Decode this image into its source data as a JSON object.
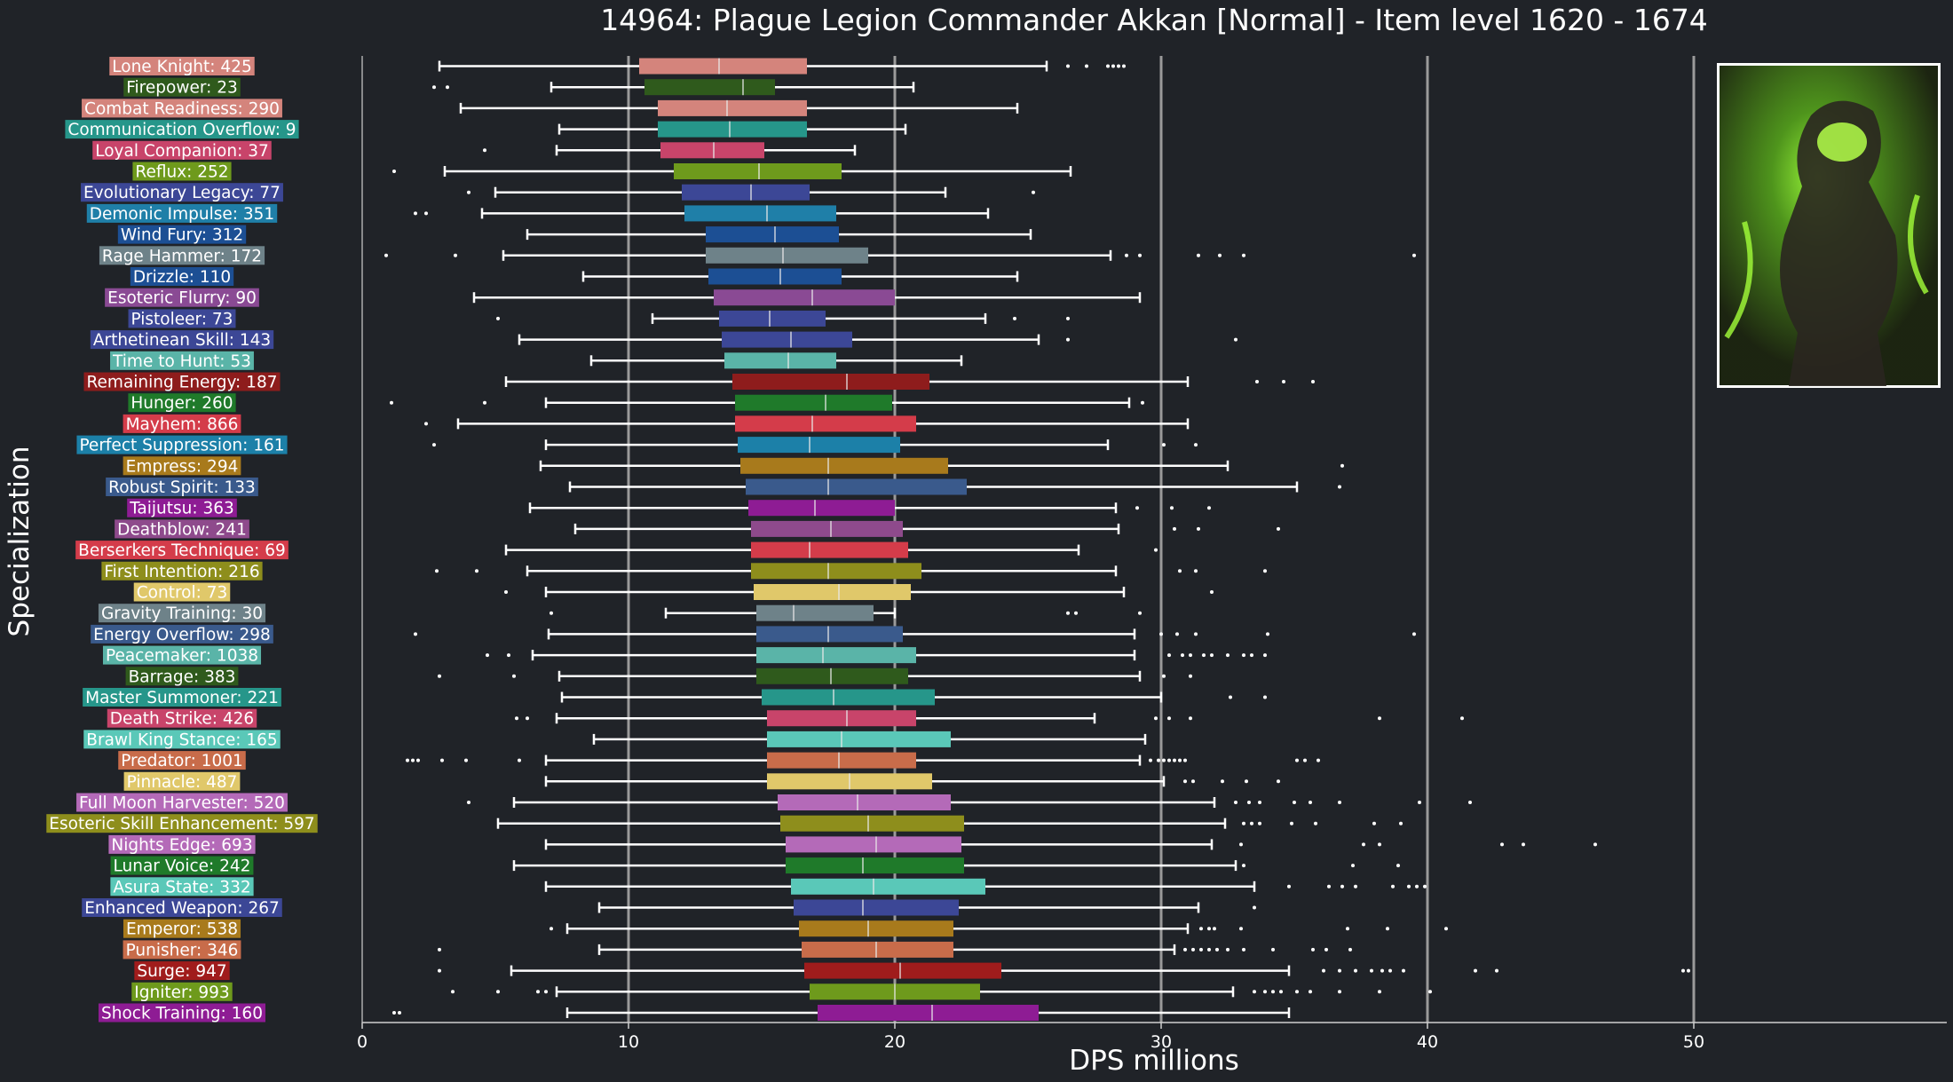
{
  "chart_data": {
    "type": "boxplot",
    "title": "14964: Plague Legion Commander Akkan [Normal] - Item level 1620 - 1674",
    "xlabel": "DPS millions",
    "ylabel": "Specialization",
    "xlim": [
      0,
      59.5
    ],
    "xticks": [
      0,
      10,
      20,
      30,
      40,
      50
    ],
    "gridlines_x": [
      10,
      20,
      30,
      40,
      50
    ],
    "legend": "none",
    "colors": {
      "background": "#202328",
      "grid": "#9a9a9a",
      "text": "#ffffff"
    },
    "series": [
      {
        "label": "Lone Knight: 425",
        "color": "#d4847c",
        "whisker_low": 2.9,
        "q1": 10.4,
        "median": 13.4,
        "q3": 16.7,
        "whisker_high": 25.7,
        "outliers": [
          26.5,
          27.2,
          28.0,
          28.2,
          28.4,
          28.6
        ]
      },
      {
        "label": "Firepower: 23",
        "color": "#2f5a1c",
        "whisker_low": 7.1,
        "q1": 10.6,
        "median": 14.3,
        "q3": 15.5,
        "whisker_high": 20.7,
        "outliers": [
          2.7,
          3.2
        ]
      },
      {
        "label": "Combat Readiness: 290",
        "color": "#d4847c",
        "whisker_low": 3.7,
        "q1": 11.1,
        "median": 13.7,
        "q3": 16.7,
        "whisker_high": 24.6,
        "outliers": []
      },
      {
        "label": "Communication Overflow: 9",
        "color": "#26968a",
        "whisker_low": 7.4,
        "q1": 11.1,
        "median": 13.8,
        "q3": 16.7,
        "whisker_high": 20.4,
        "outliers": []
      },
      {
        "label": "Loyal Companion: 37",
        "color": "#c8446a",
        "whisker_low": 7.3,
        "q1": 11.2,
        "median": 13.2,
        "q3": 15.1,
        "whisker_high": 18.5,
        "outliers": [
          4.6
        ]
      },
      {
        "label": "Reflux: 252",
        "color": "#6e9a1c",
        "whisker_low": 3.1,
        "q1": 11.7,
        "median": 14.9,
        "q3": 18.0,
        "whisker_high": 26.6,
        "outliers": [
          1.2
        ]
      },
      {
        "label": "Evolutionary Legacy: 77",
        "color": "#3c4796",
        "whisker_low": 5.0,
        "q1": 12.0,
        "median": 14.6,
        "q3": 16.8,
        "whisker_high": 21.9,
        "outliers": [
          4.0,
          25.2
        ]
      },
      {
        "label": "Demonic Impulse: 351",
        "color": "#1f7fa8",
        "whisker_low": 4.5,
        "q1": 12.1,
        "median": 15.2,
        "q3": 17.8,
        "whisker_high": 23.5,
        "outliers": [
          2.0,
          2.4
        ]
      },
      {
        "label": "Wind Fury: 312",
        "color": "#1c4f94",
        "whisker_low": 6.2,
        "q1": 12.9,
        "median": 15.5,
        "q3": 17.9,
        "whisker_high": 25.1,
        "outliers": []
      },
      {
        "label": "Rage Hammer: 172",
        "color": "#6e8289",
        "whisker_low": 5.3,
        "q1": 12.9,
        "median": 15.8,
        "q3": 19.0,
        "whisker_high": 28.1,
        "outliers": [
          0.9,
          3.5,
          28.7,
          29.2,
          31.4,
          32.2,
          33.1,
          39.5
        ]
      },
      {
        "label": "Drizzle: 110",
        "color": "#1c4f94",
        "whisker_low": 8.3,
        "q1": 13.0,
        "median": 15.7,
        "q3": 18.0,
        "whisker_high": 24.6,
        "outliers": []
      },
      {
        "label": "Esoteric Flurry: 90",
        "color": "#8a4a94",
        "whisker_low": 4.2,
        "q1": 13.2,
        "median": 16.9,
        "q3": 20.0,
        "whisker_high": 29.2,
        "outliers": []
      },
      {
        "label": "Pistoleer: 73",
        "color": "#3c4796",
        "whisker_low": 10.9,
        "q1": 13.4,
        "median": 15.3,
        "q3": 17.4,
        "whisker_high": 23.4,
        "outliers": [
          5.1,
          24.5,
          26.5
        ]
      },
      {
        "label": "Arthetinean Skill: 143",
        "color": "#3c4796",
        "whisker_low": 5.9,
        "q1": 13.5,
        "median": 16.1,
        "q3": 18.4,
        "whisker_high": 25.4,
        "outliers": [
          26.5,
          32.8
        ]
      },
      {
        "label": "Time to Hunt: 53",
        "color": "#5ab4a8",
        "whisker_low": 8.6,
        "q1": 13.6,
        "median": 16.0,
        "q3": 17.8,
        "whisker_high": 22.5,
        "outliers": []
      },
      {
        "label": "Remaining Energy: 187",
        "color": "#8e1c1c",
        "whisker_low": 5.4,
        "q1": 13.9,
        "median": 18.2,
        "q3": 21.3,
        "whisker_high": 31.0,
        "outliers": [
          33.6,
          34.6,
          35.7
        ]
      },
      {
        "label": "Hunger: 260",
        "color": "#1f7a2a",
        "whisker_low": 6.9,
        "q1": 14.0,
        "median": 17.4,
        "q3": 19.9,
        "whisker_high": 28.8,
        "outliers": [
          1.1,
          4.6,
          29.3
        ]
      },
      {
        "label": "Mayhem: 866",
        "color": "#d43c4a",
        "whisker_low": 3.6,
        "q1": 14.0,
        "median": 16.9,
        "q3": 20.8,
        "whisker_high": 31.0,
        "outliers": [
          2.4
        ]
      },
      {
        "label": "Perfect Suppression: 161",
        "color": "#1c80a8",
        "whisker_low": 6.9,
        "q1": 14.1,
        "median": 16.8,
        "q3": 20.2,
        "whisker_high": 28.0,
        "outliers": [
          2.7,
          30.1,
          31.3
        ]
      },
      {
        "label": "Empress: 294",
        "color": "#a87a1c",
        "whisker_low": 6.7,
        "q1": 14.2,
        "median": 17.5,
        "q3": 22.0,
        "whisker_high": 32.5,
        "outliers": [
          36.8
        ]
      },
      {
        "label": "Robust Spirit: 133",
        "color": "#3a5a8c",
        "whisker_low": 7.8,
        "q1": 14.4,
        "median": 17.5,
        "q3": 22.7,
        "whisker_high": 35.1,
        "outliers": [
          36.7
        ]
      },
      {
        "label": "Taijutsu: 363",
        "color": "#8e1c94",
        "whisker_low": 6.3,
        "q1": 14.5,
        "median": 17.0,
        "q3": 20.0,
        "whisker_high": 28.3,
        "outliers": [
          29.1,
          30.4,
          31.8
        ]
      },
      {
        "label": "Deathblow: 241",
        "color": "#8e4a8c",
        "whisker_low": 8.0,
        "q1": 14.6,
        "median": 17.6,
        "q3": 20.3,
        "whisker_high": 28.4,
        "outliers": [
          30.5,
          31.4,
          34.4
        ]
      },
      {
        "label": "Berserkers Technique: 69",
        "color": "#d43c4a",
        "whisker_low": 5.4,
        "q1": 14.6,
        "median": 16.8,
        "q3": 20.5,
        "whisker_high": 26.9,
        "outliers": [
          29.8
        ]
      },
      {
        "label": "First Intention: 216",
        "color": "#8e8e1c",
        "whisker_low": 6.2,
        "q1": 14.6,
        "median": 17.5,
        "q3": 21.0,
        "whisker_high": 28.3,
        "outliers": [
          2.8,
          4.3,
          30.7,
          31.3,
          33.9
        ]
      },
      {
        "label": "Control: 73",
        "color": "#e0c86a",
        "whisker_low": 6.9,
        "q1": 14.7,
        "median": 17.9,
        "q3": 20.6,
        "whisker_high": 28.6,
        "outliers": [
          5.4,
          31.9
        ]
      },
      {
        "label": "Gravity Training: 30",
        "color": "#6e8289",
        "whisker_low": 11.4,
        "q1": 14.8,
        "median": 16.2,
        "q3": 19.2,
        "whisker_high": 20.0,
        "outliers": [
          7.1,
          26.5,
          26.8,
          29.2
        ]
      },
      {
        "label": "Energy Overflow: 298",
        "color": "#3a5a8c",
        "whisker_low": 7.0,
        "q1": 14.8,
        "median": 17.5,
        "q3": 20.3,
        "whisker_high": 29.0,
        "outliers": [
          2.0,
          30.0,
          30.6,
          31.3,
          34.0,
          39.5
        ]
      },
      {
        "label": "Peacemaker: 1038",
        "color": "#5ab4a8",
        "whisker_low": 6.4,
        "q1": 14.8,
        "median": 17.3,
        "q3": 20.8,
        "whisker_high": 29.0,
        "outliers": [
          4.7,
          5.5,
          30.3,
          30.8,
          31.1,
          31.6,
          31.9,
          32.5,
          33.1,
          33.4,
          33.9
        ]
      },
      {
        "label": "Barrage: 383",
        "color": "#2f5a1c",
        "whisker_low": 7.4,
        "q1": 14.8,
        "median": 17.6,
        "q3": 20.5,
        "whisker_high": 29.2,
        "outliers": [
          2.9,
          5.7,
          30.1,
          31.1
        ]
      },
      {
        "label": "Master Summoner: 221",
        "color": "#26968a",
        "whisker_low": 7.5,
        "q1": 15.0,
        "median": 17.7,
        "q3": 21.5,
        "whisker_high": 30.0,
        "outliers": [
          32.6,
          33.9
        ]
      },
      {
        "label": "Death Strike: 426",
        "color": "#c8446a",
        "whisker_low": 7.3,
        "q1": 15.2,
        "median": 18.2,
        "q3": 20.8,
        "whisker_high": 27.5,
        "outliers": [
          5.8,
          6.2,
          29.8,
          30.3,
          31.1,
          38.2,
          41.3
        ]
      },
      {
        "label": "Brawl King Stance: 165",
        "color": "#5ac8b8",
        "whisker_low": 8.7,
        "q1": 15.2,
        "median": 18.0,
        "q3": 22.1,
        "whisker_high": 29.4,
        "outliers": []
      },
      {
        "label": "Predator: 1001",
        "color": "#c86c4a",
        "whisker_low": 6.9,
        "q1": 15.2,
        "median": 17.9,
        "q3": 20.8,
        "whisker_high": 29.2,
        "outliers": [
          1.7,
          1.9,
          2.1,
          3.0,
          3.9,
          5.9,
          29.6,
          29.9,
          30.1,
          30.3,
          30.5,
          30.7,
          30.9,
          35.1,
          35.4,
          35.9
        ]
      },
      {
        "label": "Pinnacle: 487",
        "color": "#e0c86a",
        "whisker_low": 6.9,
        "q1": 15.2,
        "median": 18.3,
        "q3": 21.4,
        "whisker_high": 30.1,
        "outliers": [
          30.9,
          31.2,
          32.3,
          33.2,
          34.4
        ]
      },
      {
        "label": "Full Moon Harvester: 520",
        "color": "#b46ab8",
        "whisker_low": 5.7,
        "q1": 15.6,
        "median": 18.6,
        "q3": 22.1,
        "whisker_high": 32.0,
        "outliers": [
          4.0,
          32.8,
          33.3,
          33.7,
          35.0,
          35.6,
          36.7,
          39.7,
          41.6
        ]
      },
      {
        "label": "Esoteric Skill Enhancement: 597",
        "color": "#8e8e1c",
        "whisker_low": 5.1,
        "q1": 15.7,
        "median": 19.0,
        "q3": 22.6,
        "whisker_high": 32.4,
        "outliers": [
          33.1,
          33.4,
          33.7,
          34.9,
          35.8,
          38.0,
          39.0
        ]
      },
      {
        "label": "Nights Edge: 693",
        "color": "#b46ab8",
        "whisker_low": 6.9,
        "q1": 15.9,
        "median": 19.3,
        "q3": 22.5,
        "whisker_high": 31.9,
        "outliers": [
          33.0,
          37.6,
          38.2,
          42.8,
          43.6,
          46.3
        ]
      },
      {
        "label": "Lunar Voice: 242",
        "color": "#1f7a2a",
        "whisker_low": 5.7,
        "q1": 15.9,
        "median": 18.8,
        "q3": 22.6,
        "whisker_high": 32.8,
        "outliers": [
          33.1,
          37.2,
          38.9
        ]
      },
      {
        "label": "Asura State: 332",
        "color": "#5ac8b8",
        "whisker_low": 6.9,
        "q1": 16.1,
        "median": 19.2,
        "q3": 23.4,
        "whisker_high": 33.5,
        "outliers": [
          34.8,
          36.3,
          36.8,
          37.3,
          38.7,
          39.3,
          39.6,
          39.9
        ]
      },
      {
        "label": "Enhanced Weapon: 267",
        "color": "#3c4796",
        "whisker_low": 8.9,
        "q1": 16.2,
        "median": 18.8,
        "q3": 22.4,
        "whisker_high": 31.4,
        "outliers": [
          33.5
        ]
      },
      {
        "label": "Emperor: 538",
        "color": "#a87a1c",
        "whisker_low": 7.7,
        "q1": 16.4,
        "median": 19.0,
        "q3": 22.2,
        "whisker_high": 31.0,
        "outliers": [
          7.1,
          31.5,
          31.8,
          32.0,
          33.0,
          37.0,
          38.5,
          40.7
        ]
      },
      {
        "label": "Punisher: 346",
        "color": "#c86c4a",
        "whisker_low": 8.9,
        "q1": 16.5,
        "median": 19.3,
        "q3": 22.2,
        "whisker_high": 30.5,
        "outliers": [
          2.9,
          30.9,
          31.2,
          31.5,
          31.8,
          32.1,
          32.5,
          33.1,
          34.2,
          35.7,
          36.2,
          37.1
        ]
      },
      {
        "label": "Surge: 947",
        "color": "#a01c1c",
        "whisker_low": 5.6,
        "q1": 16.6,
        "median": 20.2,
        "q3": 24.0,
        "whisker_high": 34.8,
        "outliers": [
          2.9,
          36.1,
          36.7,
          37.3,
          37.9,
          38.3,
          38.6,
          39.1,
          41.8,
          42.6,
          49.6,
          49.8
        ]
      },
      {
        "label": "Igniter: 993",
        "color": "#6e9a1c",
        "whisker_low": 7.3,
        "q1": 16.8,
        "median": 20.0,
        "q3": 23.2,
        "whisker_high": 32.7,
        "outliers": [
          3.4,
          5.1,
          6.6,
          6.9,
          33.5,
          33.9,
          34.2,
          34.5,
          35.1,
          35.6,
          36.7,
          38.2,
          40.1
        ]
      },
      {
        "label": "Shock Training: 160",
        "color": "#8e1c94",
        "whisker_low": 7.7,
        "q1": 17.1,
        "median": 21.4,
        "q3": 25.4,
        "whisker_high": 34.8,
        "outliers": [
          1.2,
          1.4
        ]
      }
    ]
  },
  "image_panel": {
    "icon": "boss-portrait-image"
  }
}
